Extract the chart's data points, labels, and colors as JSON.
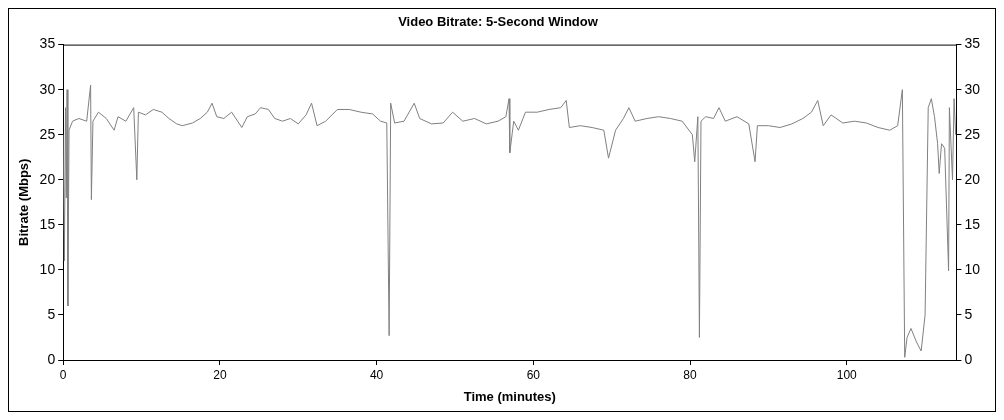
{
  "chart_data": {
    "type": "line",
    "title": "Video Bitrate: 5-Second Window",
    "xlabel": "Time (minutes)",
    "ylabel": "Bitrate (Mbps)",
    "x": [
      0,
      0.15,
      0.3,
      0.4,
      0.5,
      0.6,
      0.75,
      1.2,
      2,
      3,
      3.5,
      3.6,
      3.8,
      4.5,
      5.5,
      6.5,
      7,
      8,
      9,
      9.4,
      9.6,
      10.5,
      11.5,
      12.6,
      13.5,
      14.5,
      15.2,
      16.5,
      17.5,
      18.4,
      19,
      19.6,
      20.5,
      21.5,
      22.8,
      23.5,
      24.5,
      25.2,
      26.2,
      27,
      28,
      29,
      30,
      31,
      31.7,
      32.4,
      33.5,
      35,
      36.5,
      38,
      39.5,
      40.5,
      41.3,
      41.6,
      41.8,
      42.3,
      43.5,
      44.8,
      45.5,
      47,
      48.5,
      49.7,
      51,
      52.5,
      54,
      55.5,
      56.5,
      56.9,
      57,
      57.5,
      58.1,
      59,
      60.5,
      62,
      63.5,
      64.2,
      64.6,
      66,
      67.5,
      69,
      69.6,
      70.5,
      71.5,
      72.2,
      73,
      74.5,
      76,
      77.5,
      79,
      80.3,
      80.6,
      81,
      81.2,
      81.4,
      82,
      83,
      83.7,
      84.5,
      86,
      87.5,
      88.3,
      88.6,
      90,
      91.5,
      93,
      94.4,
      95.5,
      96.3,
      97,
      98,
      99.5,
      101,
      102.5,
      104,
      105.5,
      106.5,
      107.1,
      107.4,
      107.7,
      108.2,
      108.9,
      109.5,
      110,
      110.4,
      110.8,
      111.2,
      111.6,
      111.8,
      112.1,
      112.5,
      113,
      113.1,
      113.5,
      113.7,
      113.9
    ],
    "series": [
      {
        "color": "#808080",
        "values": [
          25,
          11,
          28,
          18,
          30,
          6,
          25.5,
          26.5,
          26.8,
          26.5,
          30.5,
          17.8,
          26.5,
          27.5,
          26.8,
          25.5,
          27,
          26.5,
          28,
          20,
          27.5,
          27.2,
          27.8,
          27.5,
          26.8,
          26.2,
          26,
          26.3,
          26.8,
          27.5,
          28.5,
          27,
          26.8,
          27.5,
          25.8,
          27,
          27.3,
          28,
          27.8,
          26.8,
          26.5,
          26.8,
          26.2,
          27.2,
          28.5,
          26,
          26.5,
          27.8,
          27.8,
          27.5,
          27.3,
          26.5,
          26.3,
          2.7,
          28.5,
          26.3,
          26.5,
          28.5,
          26.8,
          26.2,
          26.3,
          27.5,
          26.5,
          26.8,
          26.2,
          26.5,
          27,
          29,
          23,
          26.5,
          25.5,
          27.5,
          27.5,
          27.8,
          28,
          28.8,
          25.8,
          26,
          25.8,
          25.5,
          22.4,
          25.5,
          26.8,
          28,
          26.5,
          26.8,
          27,
          26.8,
          26.5,
          25,
          22,
          27,
          2.5,
          26.5,
          27,
          26.8,
          28,
          26.5,
          27,
          26.2,
          22,
          26,
          26,
          25.8,
          26.2,
          26.8,
          27.5,
          28.8,
          26,
          27.2,
          26.3,
          26.5,
          26.3,
          25.8,
          25.5,
          26,
          30,
          0.3,
          2.5,
          3.5,
          2,
          1,
          5,
          28,
          29,
          27,
          24,
          20.7,
          24,
          23.5,
          9.9,
          28,
          20,
          29,
          25
        ]
      }
    ],
    "xlim": [
      0,
      114
    ],
    "xticks": [
      0,
      20,
      40,
      60,
      80,
      100
    ],
    "ylim": [
      0,
      35
    ],
    "yticks": [
      0,
      5,
      10,
      15,
      20,
      25,
      30,
      35
    ],
    "y2lim": [
      0,
      35
    ],
    "y2ticks": [
      0,
      5,
      10,
      15,
      20,
      25,
      30,
      35
    ],
    "grid": false,
    "legend": false,
    "marker": "none",
    "line_style": "solid"
  }
}
